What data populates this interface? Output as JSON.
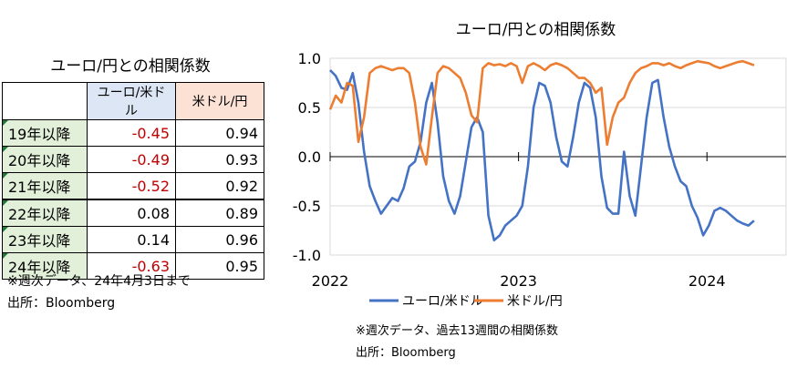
{
  "table": {
    "title": "ユーロ/円との相関係数",
    "col_headers": [
      "ユーロ/米ドル",
      "米ドル/円"
    ],
    "rows": [
      {
        "label": "19年以降",
        "eur_usd": "-0.45",
        "usd_jpy": "0.94"
      },
      {
        "label": "20年以降",
        "eur_usd": "-0.49",
        "usd_jpy": "0.93"
      },
      {
        "label": "21年以降",
        "eur_usd": "-0.52",
        "usd_jpy": "0.92"
      },
      {
        "label": "22年以降",
        "eur_usd": "0.08",
        "usd_jpy": "0.89"
      },
      {
        "label": "23年以降",
        "eur_usd": "0.14",
        "usd_jpy": "0.96"
      },
      {
        "label": "24年以降",
        "eur_usd": "-0.63",
        "usd_jpy": "0.95"
      }
    ],
    "note": "※週次データ、24年4月3日まで",
    "source": "出所：Bloomberg",
    "negative_color": "#c00000",
    "header1_color": "#dce6f4",
    "header2_color": "#fbe2d5",
    "label_color": "#e2efd9"
  },
  "chart_data": {
    "type": "line",
    "title": "ユーロ/円との相関係数",
    "x_tick_labels": [
      "2022",
      "2023",
      "2024"
    ],
    "xlim": [
      2022.0,
      2024.42
    ],
    "y_tick_labels": [
      "1.0",
      "0.5",
      "0.0",
      "-0.5",
      "-1.0"
    ],
    "ylim": [
      -1.0,
      1.0
    ],
    "grid": true,
    "legend": "bottom",
    "series": [
      {
        "name": "ユーロ/米ドル",
        "color": "#4472c4",
        "x": [
          2022.0,
          2022.03,
          2022.06,
          2022.09,
          2022.12,
          2022.15,
          2022.18,
          2022.21,
          2022.24,
          2022.27,
          2022.3,
          2022.33,
          2022.36,
          2022.39,
          2022.42,
          2022.45,
          2022.48,
          2022.51,
          2022.54,
          2022.57,
          2022.6,
          2022.63,
          2022.66,
          2022.69,
          2022.72,
          2022.75,
          2022.78,
          2022.81,
          2022.84,
          2022.87,
          2022.9,
          2022.93,
          2022.96,
          2022.99,
          2023.02,
          2023.05,
          2023.08,
          2023.11,
          2023.14,
          2023.17,
          2023.2,
          2023.23,
          2023.26,
          2023.29,
          2023.32,
          2023.35,
          2023.38,
          2023.41,
          2023.44,
          2023.47,
          2023.5,
          2023.53,
          2023.56,
          2023.59,
          2023.62,
          2023.65,
          2023.68,
          2023.71,
          2023.74,
          2023.77,
          2023.8,
          2023.83,
          2023.86,
          2023.89,
          2023.92,
          2023.95,
          2023.98,
          2024.01,
          2024.04,
          2024.07,
          2024.1,
          2024.13,
          2024.16,
          2024.19,
          2024.22,
          2024.25
        ],
        "values": [
          0.88,
          0.82,
          0.7,
          0.68,
          0.85,
          0.55,
          0.05,
          -0.3,
          -0.45,
          -0.58,
          -0.5,
          -0.42,
          -0.45,
          -0.32,
          -0.1,
          -0.05,
          0.15,
          0.55,
          0.75,
          0.35,
          -0.2,
          -0.45,
          -0.58,
          -0.4,
          -0.05,
          0.3,
          0.4,
          0.25,
          -0.6,
          -0.85,
          -0.8,
          -0.7,
          -0.65,
          -0.6,
          -0.5,
          -0.1,
          0.5,
          0.75,
          0.72,
          0.55,
          0.2,
          -0.05,
          -0.1,
          0.2,
          0.55,
          0.75,
          0.7,
          0.4,
          -0.2,
          -0.52,
          -0.58,
          -0.58,
          0.05,
          -0.4,
          -0.6,
          -0.1,
          0.4,
          0.75,
          0.78,
          0.4,
          0.1,
          -0.1,
          -0.25,
          -0.3,
          -0.5,
          -0.62,
          -0.8,
          -0.7,
          -0.55,
          -0.52,
          -0.55,
          -0.6,
          -0.65,
          -0.68,
          -0.7,
          -0.65
        ]
      },
      {
        "name": "米ドル/円",
        "color": "#ed7d31",
        "x": [
          2022.0,
          2022.03,
          2022.06,
          2022.09,
          2022.12,
          2022.15,
          2022.18,
          2022.21,
          2022.24,
          2022.27,
          2022.3,
          2022.33,
          2022.36,
          2022.39,
          2022.42,
          2022.45,
          2022.48,
          2022.51,
          2022.54,
          2022.57,
          2022.6,
          2022.63,
          2022.66,
          2022.69,
          2022.72,
          2022.75,
          2022.78,
          2022.81,
          2022.84,
          2022.87,
          2022.9,
          2022.93,
          2022.96,
          2022.99,
          2023.02,
          2023.05,
          2023.08,
          2023.11,
          2023.14,
          2023.17,
          2023.2,
          2023.23,
          2023.26,
          2023.29,
          2023.32,
          2023.35,
          2023.38,
          2023.41,
          2023.44,
          2023.47,
          2023.5,
          2023.53,
          2023.56,
          2023.59,
          2023.62,
          2023.65,
          2023.68,
          2023.71,
          2023.74,
          2023.77,
          2023.8,
          2023.83,
          2023.86,
          2023.89,
          2023.92,
          2023.95,
          2023.98,
          2024.01,
          2024.04,
          2024.07,
          2024.1,
          2024.13,
          2024.16,
          2024.19,
          2024.22,
          2024.25
        ],
        "values": [
          0.48,
          0.62,
          0.55,
          0.75,
          0.72,
          0.15,
          0.4,
          0.85,
          0.9,
          0.92,
          0.9,
          0.88,
          0.9,
          0.9,
          0.85,
          0.55,
          0.1,
          -0.08,
          0.4,
          0.85,
          0.92,
          0.9,
          0.85,
          0.8,
          0.65,
          0.42,
          0.35,
          0.9,
          0.95,
          0.93,
          0.94,
          0.92,
          0.95,
          0.92,
          0.75,
          0.92,
          0.95,
          0.92,
          0.88,
          0.93,
          0.95,
          0.93,
          0.9,
          0.85,
          0.8,
          0.8,
          0.75,
          0.65,
          0.7,
          0.12,
          0.4,
          0.55,
          0.6,
          0.75,
          0.85,
          0.9,
          0.92,
          0.95,
          0.95,
          0.93,
          0.95,
          0.92,
          0.9,
          0.93,
          0.95,
          0.97,
          0.96,
          0.95,
          0.92,
          0.9,
          0.92,
          0.94,
          0.96,
          0.97,
          0.95,
          0.93
        ]
      }
    ],
    "note": "※週次データ、過去13週間の相関係数",
    "source": "出所：Bloomberg"
  }
}
